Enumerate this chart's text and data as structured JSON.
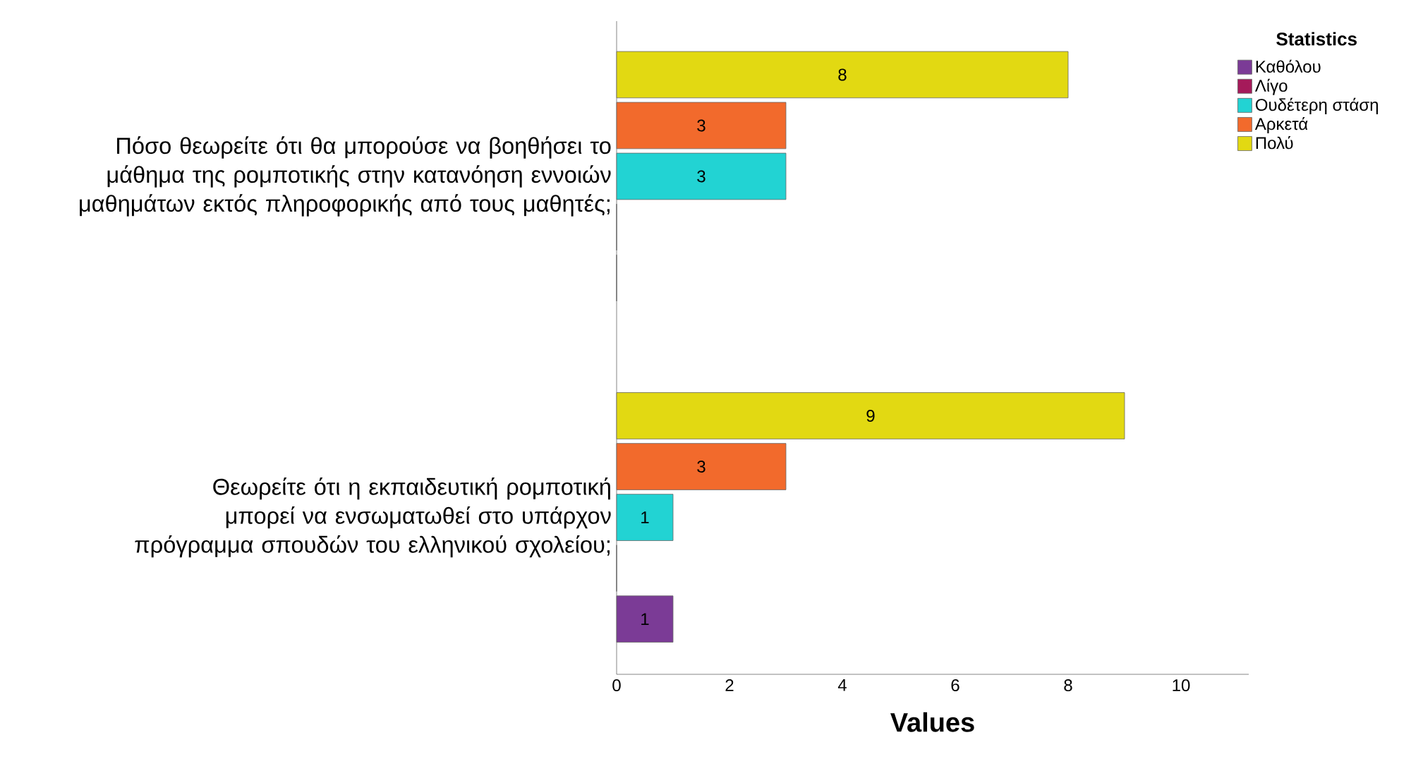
{
  "chart_data": {
    "type": "bar",
    "orientation": "horizontal",
    "xlabel": "Values",
    "legend_title": "Statistics",
    "legend": "top right",
    "categories": [
      "Πόσο θεωρείτε ότι θα μπορούσε να βοηθήσει το μάθημα της ρομποτικής στην κατανόηση εννοιών μαθημάτων εκτός πληροφορικής από τους μαθητές;",
      "Θεωρείτε ότι η εκπαιδευτική ρομποτική μπορεί να ενσωματωθεί στο υπάρχον πρόγραμμα σπουδών του ελληνικού σχολείου;"
    ],
    "series": [
      {
        "name": "Καθόλου",
        "color": "#7b3b96",
        "values": [
          0,
          1
        ],
        "value_labels": [
          null,
          "1"
        ]
      },
      {
        "name": "Λίγο",
        "color": "#a51a5a",
        "values": [
          0,
          0
        ],
        "value_labels": [
          null,
          null
        ]
      },
      {
        "name": "Ουδέτερη στάση",
        "color": "#22d3d3",
        "values": [
          3,
          1
        ],
        "value_labels": [
          "3",
          "1"
        ]
      },
      {
        "name": "Αρκετά",
        "color": "#f26a2c",
        "values": [
          3,
          3
        ],
        "value_labels": [
          "3",
          "3"
        ]
      },
      {
        "name": "Πολύ",
        "color": "#e2d912",
        "values": [
          8,
          9
        ],
        "value_labels": [
          "8",
          "9"
        ]
      }
    ],
    "xlim": [
      0,
      11.2
    ],
    "xticks": [
      0,
      2,
      4,
      6,
      8,
      10
    ]
  }
}
